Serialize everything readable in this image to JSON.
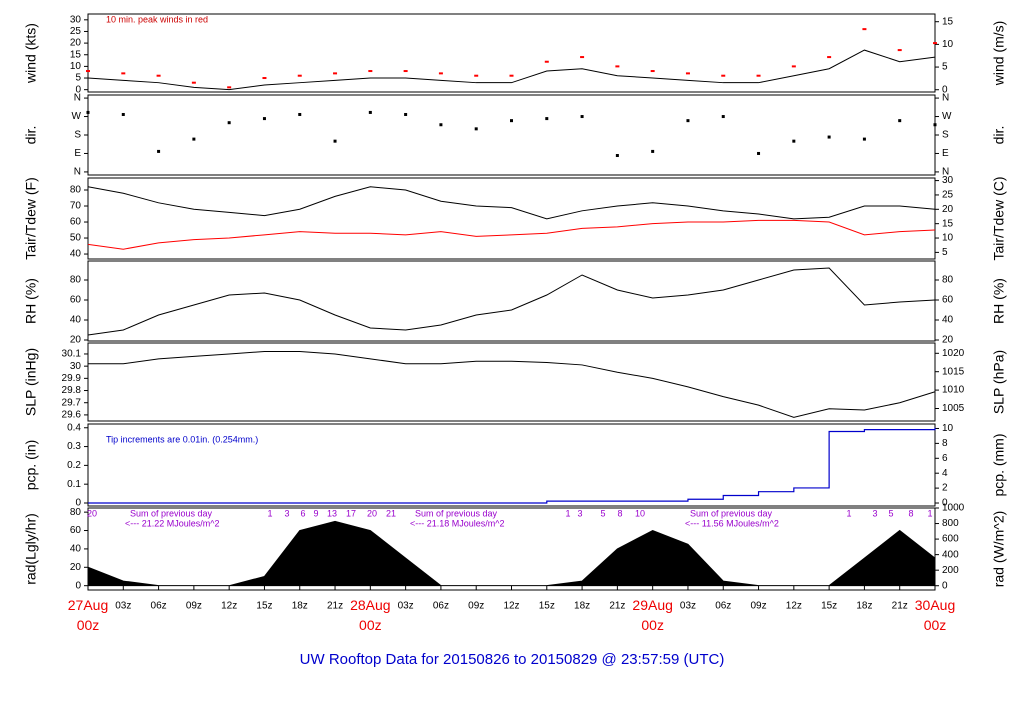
{
  "chart_data": {
    "type": "multi-panel",
    "title": "UW Rooftop Data for 20150826  to  20150829 @ 23:57:59  (UTC)",
    "x": [
      0,
      3,
      6,
      9,
      12,
      15,
      18,
      21,
      24,
      27,
      30,
      33,
      36,
      39,
      42,
      45,
      48,
      51,
      54,
      57,
      60,
      63,
      66,
      69,
      72
    ],
    "xlim": [
      0,
      72
    ],
    "xticks": [
      {
        "value": 0,
        "label": "27Aug 00z"
      },
      {
        "value": 3,
        "label": "03z"
      },
      {
        "value": 6,
        "label": "06z"
      },
      {
        "value": 9,
        "label": "09z"
      },
      {
        "value": 12,
        "label": "12z"
      },
      {
        "value": 15,
        "label": "15z"
      },
      {
        "value": 18,
        "label": "18z"
      },
      {
        "value": 21,
        "label": "21z"
      },
      {
        "value": 24,
        "label": "28Aug 00z"
      },
      {
        "value": 27,
        "label": "03z"
      },
      {
        "value": 30,
        "label": "06z"
      },
      {
        "value": 33,
        "label": "09z"
      },
      {
        "value": 36,
        "label": "12z"
      },
      {
        "value": 39,
        "label": "15z"
      },
      {
        "value": 42,
        "label": "18z"
      },
      {
        "value": 45,
        "label": "21z"
      },
      {
        "value": 48,
        "label": "29Aug 00z"
      },
      {
        "value": 51,
        "label": "03z"
      },
      {
        "value": 54,
        "label": "06z"
      },
      {
        "value": 57,
        "label": "09z"
      },
      {
        "value": 60,
        "label": "12z"
      },
      {
        "value": 63,
        "label": "15z"
      },
      {
        "value": 66,
        "label": "18z"
      },
      {
        "value": 69,
        "label": "21z"
      },
      {
        "value": 72,
        "label": "30Aug 00z"
      }
    ],
    "panels": [
      {
        "type": "line",
        "ylabel": "wind (kts)",
        "y2label": "wind (m/s)",
        "annotation": "10 min. peak winds in red",
        "ylim": [
          -1,
          32.5
        ],
        "yticks": [
          0,
          5,
          10,
          15,
          20,
          25,
          30
        ],
        "y2lim": [
          -0.5,
          16.7
        ],
        "y2ticks": [
          0,
          5,
          10,
          15
        ],
        "series": [
          {
            "name": "wind",
            "color": "#000000",
            "values": [
              5,
              4,
              3,
              1,
              0,
              2,
              3,
              4,
              5,
              5,
              4,
              3,
              3,
              8,
              9,
              6,
              5,
              4,
              3,
              3,
              6,
              9,
              17,
              12,
              14
            ]
          },
          {
            "name": "peak",
            "color": "#ff0000",
            "marker": "dash",
            "values": [
              8,
              7,
              6,
              3,
              1,
              5,
              6,
              7,
              8,
              8,
              7,
              6,
              6,
              12,
              14,
              10,
              8,
              7,
              6,
              6,
              10,
              14,
              26,
              17,
              20
            ]
          }
        ]
      },
      {
        "type": "scatter",
        "ylabel": "dir.",
        "y2label": "dir.",
        "ylim": [
          -15,
          375
        ],
        "yticks": [
          {
            "value": 0,
            "label": "N"
          },
          {
            "value": 90,
            "label": "E"
          },
          {
            "value": 180,
            "label": "S"
          },
          {
            "value": 270,
            "label": "W"
          },
          {
            "value": 360,
            "label": "N"
          }
        ],
        "y2lim": [
          -15,
          375
        ],
        "y2ticks": [
          {
            "value": 0,
            "label": "N"
          },
          {
            "value": 90,
            "label": "E"
          },
          {
            "value": 180,
            "label": "S"
          },
          {
            "value": 270,
            "label": "W"
          },
          {
            "value": 360,
            "label": "N"
          }
        ],
        "series": [
          {
            "name": "dir",
            "color": "#000000",
            "values": [
              290,
              280,
              100,
              160,
              240,
              260,
              280,
              150,
              290,
              280,
              230,
              210,
              250,
              260,
              270,
              80,
              100,
              250,
              270,
              90,
              150,
              170,
              160,
              250,
              230
            ]
          }
        ]
      },
      {
        "type": "line",
        "ylabel": "Tair/Tdew (F)",
        "y2label": "Tair/Tdew (C)",
        "ylim": [
          36.9,
          87.5
        ],
        "yticks": [
          40,
          50,
          60,
          70,
          80
        ],
        "y2lim": [
          2.7,
          30.9
        ],
        "y2ticks": [
          5,
          10,
          15,
          20,
          25,
          30
        ],
        "series": [
          {
            "name": "Tair",
            "color": "#000000",
            "values": [
              82,
              78,
              72,
              68,
              66,
              64,
              68,
              76,
              82,
              80,
              73,
              70,
              69,
              62,
              67,
              70,
              72,
              70,
              67,
              65,
              62,
              63,
              70,
              70,
              68
            ]
          },
          {
            "name": "Tdew",
            "color": "#ff0000",
            "values": [
              46,
              43,
              47,
              49,
              50,
              52,
              54,
              53,
              53,
              52,
              54,
              51,
              52,
              53,
              56,
              57,
              59,
              60,
              60,
              61,
              61,
              60,
              52,
              54,
              55
            ]
          }
        ]
      },
      {
        "type": "line",
        "ylabel": "RH (%)",
        "y2label": "RH (%)",
        "ylim": [
          19,
          99
        ],
        "yticks": [
          20,
          40,
          60,
          80
        ],
        "y2lim": [
          19,
          99
        ],
        "y2ticks": [
          20,
          40,
          60,
          80
        ],
        "series": [
          {
            "name": "RH",
            "color": "#000000",
            "values": [
              25,
              30,
              45,
              55,
              65,
              67,
              60,
              45,
              32,
              30,
              35,
              45,
              50,
              65,
              85,
              70,
              62,
              65,
              70,
              80,
              90,
              92,
              55,
              58,
              60
            ]
          }
        ]
      },
      {
        "type": "line",
        "ylabel": "SLP (inHg)",
        "y2label": "SLP (hPa)",
        "ylim": [
          29.55,
          30.19
        ],
        "yticks": [
          29.6,
          29.7,
          29.8,
          29.9,
          30.0,
          30.1
        ],
        "y2lim": [
          1001.6,
          1022.8
        ],
        "y2ticks": [
          1005,
          1010,
          1015,
          1020
        ],
        "series": [
          {
            "name": "SLP",
            "color": "#000000",
            "values": [
              30.02,
              30.02,
              30.06,
              30.08,
              30.1,
              30.12,
              30.12,
              30.1,
              30.06,
              30.02,
              30.02,
              30.04,
              30.04,
              30.03,
              30.01,
              29.95,
              29.9,
              29.83,
              29.75,
              29.68,
              29.58,
              29.65,
              29.64,
              29.7,
              29.79
            ]
          }
        ]
      },
      {
        "type": "step",
        "ylabel": "pcp. (in)",
        "y2label": "pcp. (mm)",
        "annotation": "Tip increments are 0.01in. (0.254mm.)",
        "ylim": [
          -0.016,
          0.42
        ],
        "yticks": [
          0.0,
          0.1,
          0.2,
          0.3,
          0.4
        ],
        "y2lim": [
          -0.4,
          10.6
        ],
        "y2ticks": [
          0,
          2,
          4,
          6,
          8,
          10
        ],
        "series": [
          {
            "name": "pcp",
            "color": "#0000cc",
            "values": [
              0,
              0,
              0,
              0,
              0,
              0,
              0,
              0,
              0,
              0,
              0,
              0,
              0,
              0.01,
              0.01,
              0.01,
              0.01,
              0.02,
              0.04,
              0.06,
              0.08,
              0.38,
              0.39,
              0.39,
              0.4
            ]
          }
        ]
      },
      {
        "type": "area",
        "ylabel": "rad(Lgly/hr)",
        "y2label": "rad (W/m^2)",
        "ylim": [
          -4.7,
          84.5
        ],
        "yticks": [
          0,
          20,
          40,
          60,
          80
        ],
        "y2lim": [
          -55,
          1000
        ],
        "y2ticks": [
          0,
          200,
          400,
          600,
          800,
          1000
        ],
        "sums": [
          {
            "label": "Sum of previous day",
            "value": "<--- 21.22 MJoules/m^2"
          },
          {
            "label": "Sum of previous day",
            "value": "<--- 21.18 MJoules/m^2"
          },
          {
            "label": "Sum of previous day",
            "value": "<--- 11.56 MJoules/m^2"
          }
        ],
        "hour_labels": [
          "20",
          "1",
          "3",
          "6",
          "9",
          "13",
          "17",
          "20",
          "21",
          "1",
          "3",
          "5",
          "8",
          "10",
          "1",
          "3",
          "5",
          "8",
          "1"
        ],
        "series": [
          {
            "name": "rad",
            "color": "#000000",
            "values": [
              20,
              5,
              0,
              0,
              0,
              10,
              60,
              70,
              60,
              30,
              0,
              0,
              0,
              0,
              5,
              40,
              60,
              45,
              5,
              0,
              0,
              0,
              30,
              60,
              30
            ]
          }
        ]
      }
    ]
  }
}
